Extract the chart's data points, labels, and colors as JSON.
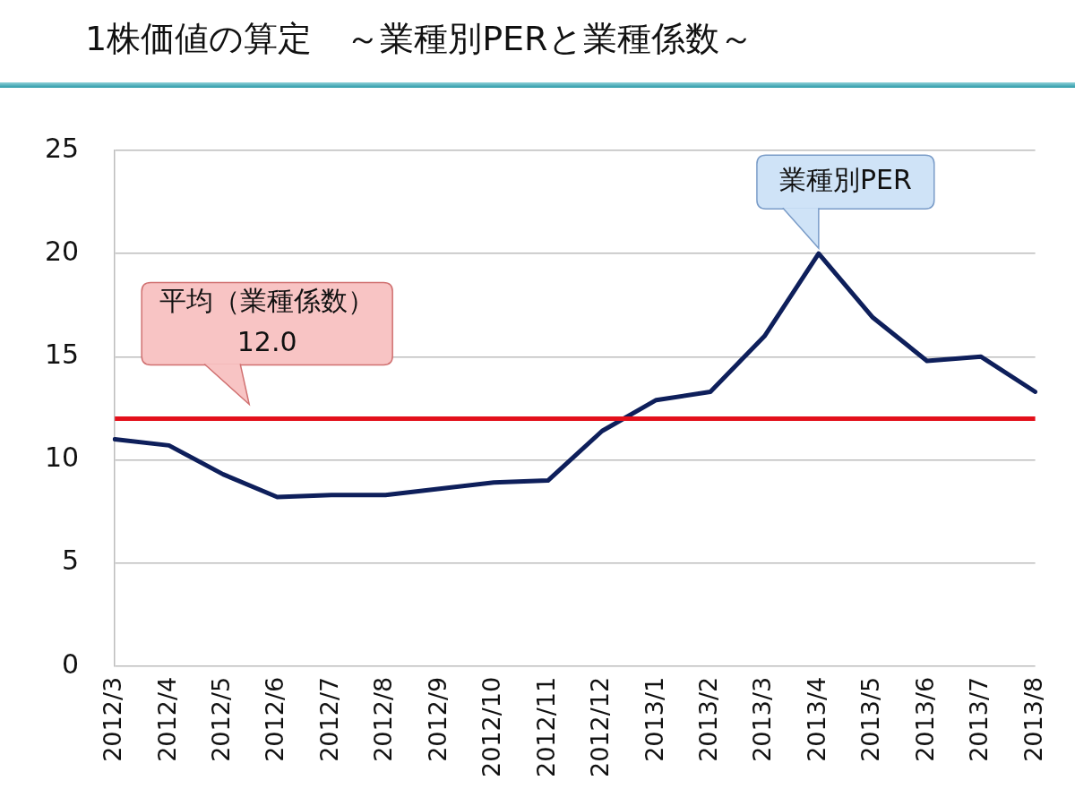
{
  "chart_data": {
    "type": "line",
    "title": "1株価値の算定　～業種別PERと業種係数～",
    "categories": [
      "2012/3",
      "2012/4",
      "2012/5",
      "2012/6",
      "2012/7",
      "2012/8",
      "2012/9",
      "2012/10",
      "2012/11",
      "2012/12",
      "2013/1",
      "2013/2",
      "2013/3",
      "2013/4",
      "2013/5",
      "2013/6",
      "2013/7",
      "2013/8"
    ],
    "series": [
      {
        "name": "業種別PER",
        "color": "#0e1f5b",
        "values": [
          11.0,
          10.7,
          9.3,
          8.2,
          8.3,
          8.3,
          8.6,
          8.9,
          9.0,
          11.4,
          12.9,
          13.3,
          16.0,
          20.0,
          16.9,
          14.8,
          15.0,
          13.3
        ]
      }
    ],
    "ylim": [
      0,
      25
    ],
    "yticks": [
      0,
      5,
      10,
      15,
      20,
      25
    ],
    "grid": "y",
    "legend": false,
    "marker": "none",
    "line_style": "solid",
    "ref_lines": [
      {
        "axis": "y",
        "value": 12.0,
        "label": "平均（業種係数）\n12.0",
        "color": "#e3101b"
      }
    ]
  }
}
